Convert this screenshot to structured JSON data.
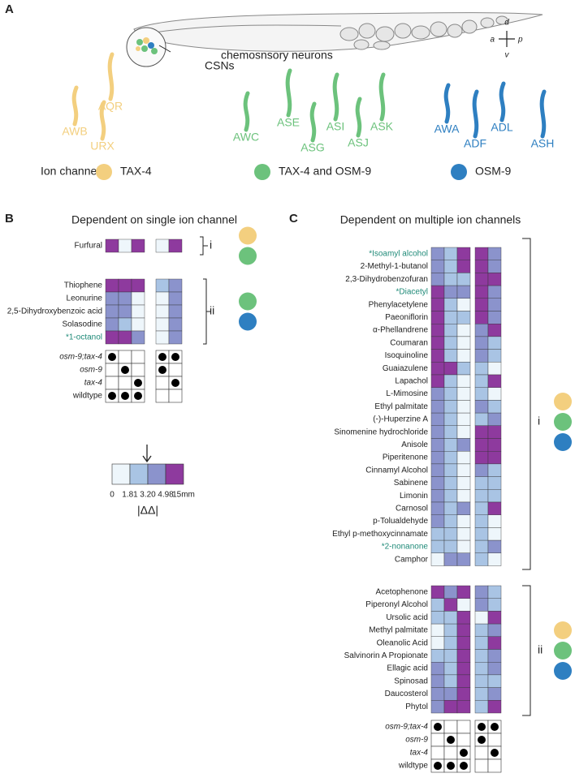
{
  "panel_labels": [
    "A",
    "B",
    "C"
  ],
  "worm": {
    "axes": [
      "d",
      "a",
      "p",
      "v"
    ],
    "caption": [
      "chemosnsory neurons",
      "CSNs"
    ]
  },
  "ion_channel_label": "Ion channel:",
  "neuron_groups": [
    {
      "channel": "TAX-4",
      "color": "#f3cf7f",
      "neurons": [
        "AWB",
        "AQR",
        "URX"
      ]
    },
    {
      "channel": "TAX-4 and OSM-9",
      "color": "#6cc27c",
      "neurons": [
        "AWC",
        "ASE",
        "ASG",
        "ASI",
        "ASJ",
        "ASK"
      ]
    },
    {
      "channel": "OSM-9",
      "color": "#2e7fc1",
      "neurons": [
        "AWA",
        "ADF",
        "ADL",
        "ASH"
      ]
    }
  ],
  "scale": {
    "ticks": [
      0,
      1.81,
      {
        "value": 3.2,
        "label": "3.20"
      },
      4.98,
      {
        "value": 15,
        "label": "15mm"
      }
    ],
    "colors": [
      "#eef6fb",
      "#a9c4e4",
      "#8b93cc",
      "#8e3a9e"
    ],
    "label": "|ΔΔ|"
  },
  "panel_b": {
    "title": "Dependent on single ion channel",
    "groups": [
      {
        "label": "i",
        "channels": [
          0,
          1
        ],
        "rows": [
          {
            "name": "Furfural",
            "left": [
              10,
              1,
              10
            ],
            "right": [
              1,
              10
            ]
          }
        ]
      },
      {
        "label": "ii",
        "channels": [
          1,
          2
        ],
        "rows": [
          {
            "name": "Thiophene",
            "left": [
              10,
              10,
              10
            ],
            "right": [
              2.5,
              4
            ]
          },
          {
            "name": "Leonurine",
            "left": [
              4,
              4,
              1
            ],
            "right": [
              1,
              4
            ]
          },
          {
            "name": "2,5-Dihydroxybenzoic acid",
            "left": [
              4,
              4,
              1
            ],
            "right": [
              1,
              4
            ]
          },
          {
            "name": "Solasodine",
            "left": [
              4,
              2.5,
              1
            ],
            "right": [
              1,
              4
            ]
          },
          {
            "name": "*1-octanol",
            "left": [
              10,
              10,
              4
            ],
            "right": [
              1,
              4
            ]
          }
        ]
      }
    ],
    "genotypes": {
      "names": [
        "osm-9;tax-4",
        "osm-9",
        "tax-4",
        "wildtype"
      ],
      "left": [
        [
          true,
          false,
          false
        ],
        [
          false,
          true,
          false
        ],
        [
          false,
          false,
          true
        ],
        [
          true,
          true,
          true
        ]
      ],
      "right": [
        [
          true,
          true
        ],
        [
          true,
          false
        ],
        [
          false,
          true
        ],
        [
          false,
          false
        ]
      ]
    }
  },
  "panel_c": {
    "title": "Dependent on multiple ion channels",
    "groups": [
      {
        "label": "i",
        "channels": [
          0,
          1,
          2
        ],
        "rows": [
          {
            "name": "*Isoamyl alcohol",
            "left": [
              4,
              2.5,
              10
            ],
            "right": [
              10,
              4
            ]
          },
          {
            "name": "2-Methyl-1-butanol",
            "left": [
              4,
              2.5,
              10
            ],
            "right": [
              10,
              4
            ]
          },
          {
            "name": "2,3-Dihydrobenzofuran",
            "left": [
              4,
              2.5,
              2.5
            ],
            "right": [
              10,
              10
            ]
          },
          {
            "name": "*Diacetyl",
            "left": [
              10,
              4,
              4
            ],
            "right": [
              10,
              4
            ]
          },
          {
            "name": "Phenylacetylene",
            "left": [
              10,
              2.5,
              1
            ],
            "right": [
              10,
              4
            ]
          },
          {
            "name": "Paeoniflorin",
            "left": [
              10,
              2.5,
              2.5
            ],
            "right": [
              10,
              4
            ]
          },
          {
            "name": "α-Phellandrene",
            "left": [
              10,
              2.5,
              1
            ],
            "right": [
              4,
              10
            ]
          },
          {
            "name": "Coumaran",
            "left": [
              10,
              2.5,
              1
            ],
            "right": [
              4,
              2.5
            ]
          },
          {
            "name": "Isoquinoline",
            "left": [
              10,
              2.5,
              1
            ],
            "right": [
              4,
              2.5
            ]
          },
          {
            "name": "Guaiazulene",
            "left": [
              10,
              10,
              2.5
            ],
            "right": [
              2.5,
              1
            ]
          },
          {
            "name": "Lapachol",
            "left": [
              10,
              2.5,
              1
            ],
            "right": [
              2.5,
              10
            ]
          },
          {
            "name": "L-Mimosine",
            "left": [
              4,
              2.5,
              1
            ],
            "right": [
              2.5,
              1
            ]
          },
          {
            "name": "Ethyl palmitate",
            "left": [
              4,
              2.5,
              1
            ],
            "right": [
              4,
              2.5
            ]
          },
          {
            "name": "(-)-Huperzine A",
            "left": [
              4,
              2.5,
              1
            ],
            "right": [
              2.5,
              4
            ]
          },
          {
            "name": "Sinomenine hydrochloride",
            "left": [
              4,
              2.5,
              1
            ],
            "right": [
              10,
              10
            ]
          },
          {
            "name": "Anisole",
            "left": [
              4,
              2.5,
              4
            ],
            "right": [
              10,
              10
            ]
          },
          {
            "name": "Piperitenone",
            "left": [
              4,
              2.5,
              1
            ],
            "right": [
              10,
              10
            ]
          },
          {
            "name": "Cinnamyl Alcohol",
            "left": [
              4,
              2.5,
              1
            ],
            "right": [
              4,
              2.5
            ]
          },
          {
            "name": "Sabinene",
            "left": [
              4,
              2.5,
              1
            ],
            "right": [
              2.5,
              2.5
            ]
          },
          {
            "name": "Limonin",
            "left": [
              4,
              2.5,
              1
            ],
            "right": [
              2.5,
              2.5
            ]
          },
          {
            "name": "Carnosol",
            "left": [
              4,
              2.5,
              4
            ],
            "right": [
              2.5,
              10
            ]
          },
          {
            "name": "p-Tolualdehyde",
            "left": [
              4,
              2.5,
              1
            ],
            "right": [
              2.5,
              1
            ]
          },
          {
            "name": "Ethyl p-methoxycinnamate",
            "left": [
              2.5,
              2.5,
              1
            ],
            "right": [
              2.5,
              1
            ]
          },
          {
            "name": "*2-nonanone",
            "left": [
              2.5,
              2.5,
              1
            ],
            "right": [
              2.5,
              4
            ]
          },
          {
            "name": "Camphor",
            "left": [
              1,
              4,
              4
            ],
            "right": [
              2.5,
              1
            ]
          }
        ]
      },
      {
        "label": "ii",
        "channels": [
          0,
          1,
          2
        ],
        "rows": [
          {
            "name": "Acetophenone",
            "left": [
              10,
              4,
              10
            ],
            "right": [
              4,
              2.5
            ]
          },
          {
            "name": "Piperonyl Alcohol",
            "left": [
              2.5,
              10,
              1
            ],
            "right": [
              4,
              2.5
            ]
          },
          {
            "name": "Ursolic acid",
            "left": [
              2.5,
              2.5,
              10
            ],
            "right": [
              1,
              10
            ]
          },
          {
            "name": "Methyl palmitate",
            "left": [
              1,
              2.5,
              10
            ],
            "right": [
              2.5,
              4
            ]
          },
          {
            "name": "Oleanolic Acid",
            "left": [
              1,
              2.5,
              10
            ],
            "right": [
              2.5,
              10
            ]
          },
          {
            "name": "Salvinorin A Propionate",
            "left": [
              2.5,
              2.5,
              10
            ],
            "right": [
              2.5,
              4
            ]
          },
          {
            "name": "Ellagic acid",
            "left": [
              4,
              2.5,
              10
            ],
            "right": [
              2.5,
              4
            ]
          },
          {
            "name": "Spinosad",
            "left": [
              4,
              2.5,
              10
            ],
            "right": [
              2.5,
              2.5
            ]
          },
          {
            "name": "Daucosterol",
            "left": [
              4,
              4,
              10
            ],
            "right": [
              2.5,
              4
            ]
          },
          {
            "name": "Phytol",
            "left": [
              4,
              10,
              10
            ],
            "right": [
              2.5,
              10
            ]
          }
        ]
      }
    ],
    "genotypes": {
      "names": [
        "osm-9;tax-4",
        "osm-9",
        "tax-4",
        "wildtype"
      ],
      "left": [
        [
          true,
          false,
          false
        ],
        [
          false,
          true,
          false
        ],
        [
          false,
          false,
          true
        ],
        [
          true,
          true,
          true
        ]
      ],
      "right": [
        [
          true,
          true
        ],
        [
          true,
          false
        ],
        [
          false,
          true
        ],
        [
          false,
          false
        ]
      ]
    }
  }
}
